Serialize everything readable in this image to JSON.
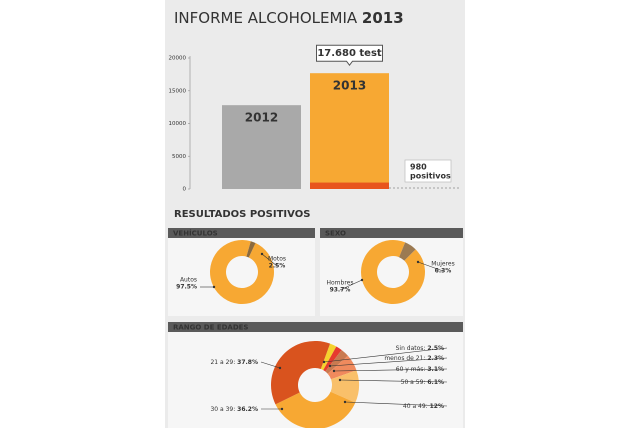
{
  "title": "INFORME ALCOHOLEMIA",
  "title_year": "2013",
  "section_title": "RESULTADOS POSITIVOS",
  "chart_data": [
    {
      "type": "bar",
      "categories": [
        "2012",
        "2013"
      ],
      "values": [
        12800,
        17680
      ],
      "value_labels": [
        null,
        "17.680 test"
      ],
      "colors": [
        "#a9a9a9",
        "#f7a833"
      ],
      "ylim": [
        0,
        20000
      ],
      "yticks": [
        0,
        5000,
        10000,
        15000,
        20000
      ],
      "positives": {
        "value": 980,
        "label": "positivos",
        "color": "#e8541c"
      }
    },
    {
      "type": "donut",
      "title": "VEHÍCULOS",
      "categories": [
        "Autos",
        "Motos"
      ],
      "values": [
        97.5,
        2.5
      ],
      "value_labels": [
        "97.5%",
        "2.5%"
      ],
      "colors": [
        "#f7a833",
        "#8b6a3e"
      ]
    },
    {
      "type": "donut",
      "title": "SEXO",
      "categories": [
        "Hombres",
        "Mujeres"
      ],
      "values": [
        93.7,
        6.3
      ],
      "value_labels": [
        "93.7%",
        "6.3%"
      ],
      "colors": [
        "#f7a833",
        "#9b7a52"
      ]
    },
    {
      "type": "donut",
      "title": "RANGO DE EDADES",
      "categories": [
        "Sin datos:",
        "menos de 21:",
        "60 y más:",
        "50 a 59:",
        "40 a 49:",
        "30 a 39:",
        "21 a 29:"
      ],
      "values": [
        2.5,
        2.3,
        3.1,
        6.1,
        12,
        36.2,
        37.8
      ],
      "value_labels": [
        "2.5%",
        "2.3%",
        "3.1%",
        "6.1%",
        "12%",
        "36.2%",
        "37.8%"
      ],
      "colors": [
        "#f5d22e",
        "#e63b2e",
        "#c97a50",
        "#f08a5d",
        "#f9c06a",
        "#f7a833",
        "#d9531e"
      ]
    }
  ]
}
